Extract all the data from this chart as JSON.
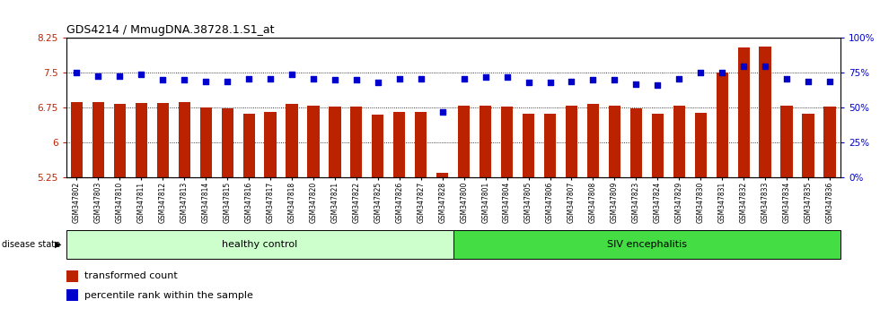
{
  "title": "GDS4214 / MmugDNA.38728.1.S1_at",
  "samples": [
    "GSM347802",
    "GSM347803",
    "GSM347810",
    "GSM347811",
    "GSM347812",
    "GSM347813",
    "GSM347814",
    "GSM347815",
    "GSM347816",
    "GSM347817",
    "GSM347818",
    "GSM347820",
    "GSM347821",
    "GSM347822",
    "GSM347825",
    "GSM347826",
    "GSM347827",
    "GSM347828",
    "GSM347800",
    "GSM347801",
    "GSM347804",
    "GSM347805",
    "GSM347806",
    "GSM347807",
    "GSM347808",
    "GSM347809",
    "GSM347823",
    "GSM347824",
    "GSM347829",
    "GSM347830",
    "GSM347831",
    "GSM347832",
    "GSM347833",
    "GSM347834",
    "GSM347835",
    "GSM347836"
  ],
  "bar_values": [
    6.88,
    6.88,
    6.83,
    6.86,
    6.86,
    6.88,
    6.75,
    6.74,
    6.62,
    6.67,
    6.83,
    6.8,
    6.78,
    6.78,
    6.6,
    6.67,
    6.67,
    5.35,
    6.8,
    6.8,
    6.78,
    6.62,
    6.63,
    6.8,
    6.83,
    6.8,
    6.73,
    6.62,
    6.8,
    6.65,
    7.5,
    8.05,
    8.07,
    6.8,
    6.63,
    6.78
  ],
  "percentile_values": [
    75,
    73,
    73,
    74,
    70,
    70,
    69,
    69,
    71,
    71,
    74,
    71,
    70,
    70,
    68,
    71,
    71,
    47,
    71,
    72,
    72,
    68,
    68,
    69,
    70,
    70,
    67,
    66,
    71,
    75,
    75,
    80,
    80,
    71,
    69,
    69
  ],
  "healthy_count": 18,
  "siv_count": 18,
  "bar_color": "#bb2200",
  "percentile_color": "#0000cc",
  "ylim_left": [
    5.25,
    8.25
  ],
  "ylim_right": [
    0,
    100
  ],
  "yticks_left": [
    5.25,
    6.0,
    6.75,
    7.5,
    8.25
  ],
  "yticks_right": [
    0,
    25,
    50,
    75,
    100
  ],
  "ytick_labels_left": [
    "5.25",
    "6",
    "6.75",
    "7.5",
    "8.25"
  ],
  "ytick_labels_right": [
    "0%",
    "25%",
    "50%",
    "75%",
    "100%"
  ],
  "healthy_label": "healthy control",
  "siv_label": "SIV encephalitis",
  "disease_state_label": "disease state",
  "legend_bar": "transformed count",
  "legend_pct": "percentile rank within the sample",
  "healthy_color": "#ccffcc",
  "siv_color": "#44dd44",
  "background_color": "#ffffff"
}
